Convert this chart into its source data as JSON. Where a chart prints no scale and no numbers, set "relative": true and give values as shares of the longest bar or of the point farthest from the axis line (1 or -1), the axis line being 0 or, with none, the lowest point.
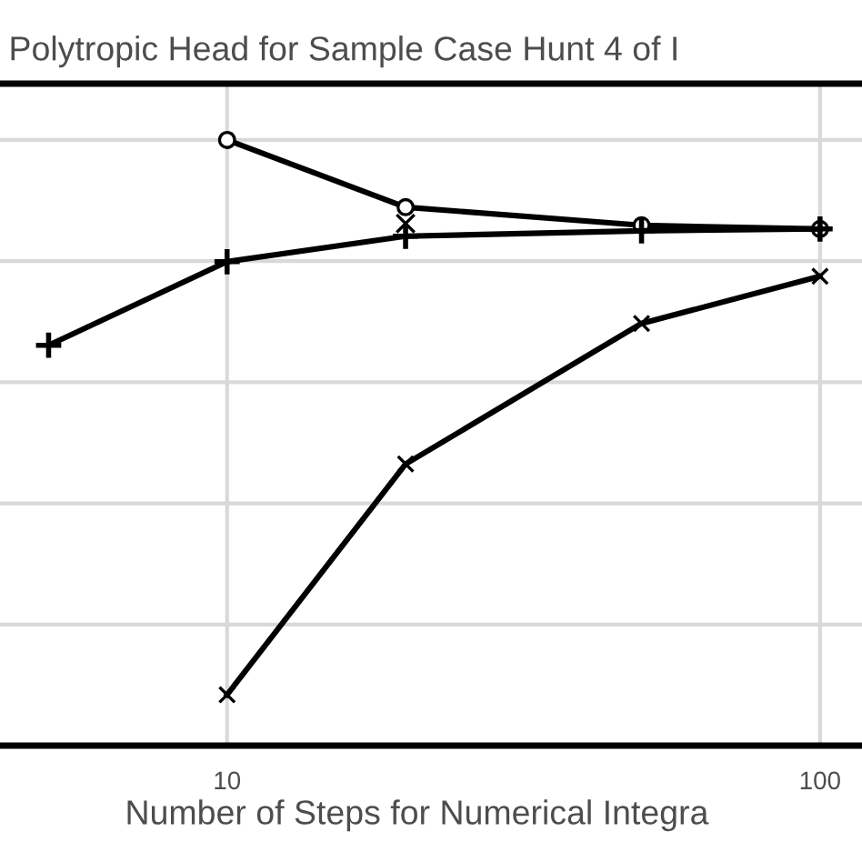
{
  "chart_data": {
    "type": "line",
    "title": "Polytropic Head for Sample Case Hunt 4 of I",
    "xlabel": "Number of Steps for Numerical Integra",
    "log": "x",
    "relative": true,
    "xlim": [
      4.14,
      117.7
    ],
    "xticks": [
      10,
      100
    ],
    "grid": true,
    "legend": false,
    "series": [
      {
        "color": "#000000",
        "marker": "circle",
        "x": [
          10,
          20,
          50,
          100
        ],
        "values": [
          1,
          0.889,
          0.859,
          0.853
        ]
      },
      {
        "color": "#000000",
        "marker": "plus",
        "x": [
          5,
          10,
          20,
          50,
          100
        ],
        "values": [
          0.661,
          0.799,
          0.841,
          0.85,
          0.853
        ]
      },
      {
        "color": "#000000",
        "marker": "cross",
        "x": [
          10,
          20,
          50,
          100
        ],
        "values": [
          0.084,
          0.465,
          0.697,
          0.775
        ]
      },
      {
        "type": "scatter",
        "color": "#000000",
        "marker": "cross",
        "x": [
          20
        ],
        "values": [
          0.862
        ]
      }
    ]
  }
}
